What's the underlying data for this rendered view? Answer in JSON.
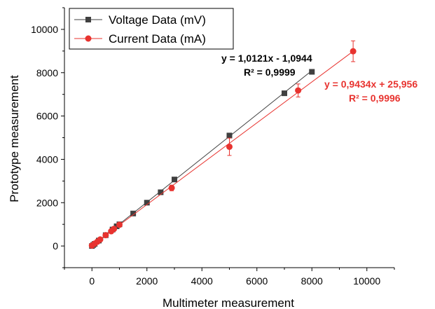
{
  "chart_data": {
    "type": "scatter",
    "title": "",
    "xlabel": "Multimeter measurement",
    "ylabel": "Prototype measurement",
    "xlim": [
      -1000,
      11000
    ],
    "ylim": [
      -1000,
      11000
    ],
    "x_ticks": [
      0,
      2000,
      4000,
      6000,
      8000,
      10000
    ],
    "y_ticks": [
      0,
      2000,
      4000,
      6000,
      8000,
      10000
    ],
    "x_tick_labels": [
      "0",
      "2000",
      "4000",
      "6000",
      "8000",
      "10000"
    ],
    "y_tick_labels": [
      "0",
      "2000",
      "4000",
      "6000",
      "8000",
      "10000"
    ],
    "legend_position": "top-left",
    "series": [
      {
        "name": "Voltage Data (mV)",
        "color": "#404040",
        "marker": "square",
        "x": [
          0,
          50,
          100,
          250,
          500,
          750,
          900,
          1000,
          1500,
          2000,
          2500,
          3000,
          5000,
          7000,
          8000
        ],
        "y": [
          0,
          50,
          100,
          250,
          500,
          760,
          910,
          1000,
          1500,
          2000,
          2480,
          3070,
          5100,
          7050,
          8040
        ],
        "fit": {
          "slope": 1.0121,
          "intercept": -1.0944,
          "equation": "y = 1,0121x - 1,0944",
          "r2": "R² = 0,9999",
          "color": "#000000"
        }
      },
      {
        "name": "Current Data (mA)",
        "color": "#e8332f",
        "marker": "circle",
        "x": [
          0,
          100,
          200,
          300,
          500,
          700,
          800,
          1000,
          2900,
          5000,
          7500,
          9500
        ],
        "y": [
          20,
          110,
          200,
          300,
          500,
          680,
          790,
          980,
          2680,
          4580,
          7180,
          8990
        ],
        "y_err": [
          0,
          0,
          0,
          0,
          0,
          0,
          0,
          0,
          130,
          400,
          300,
          480
        ],
        "fit": {
          "slope": 0.9434,
          "intercept": 25.956,
          "equation": "y = 0,9434x + 25,956",
          "r2": "R² = 0,9996",
          "color": "#e8332f"
        }
      }
    ]
  }
}
